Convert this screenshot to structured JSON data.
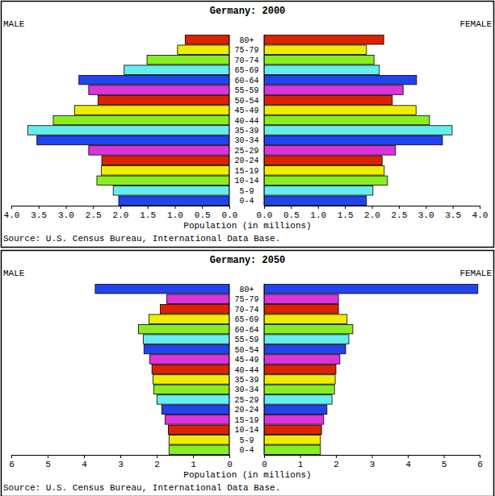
{
  "chart_data": [
    {
      "type": "bar",
      "orientation": "horizontal",
      "title": "Germany: 2000",
      "categories": [
        "0-4",
        "5-9",
        "10-14",
        "15-19",
        "20-24",
        "25-29",
        "30-34",
        "35-39",
        "40-44",
        "45-49",
        "50-54",
        "55-59",
        "60-64",
        "65-69",
        "70-74",
        "75-79",
        "80+"
      ],
      "series": [
        {
          "name": "MALE",
          "values": [
            2.03,
            2.13,
            2.43,
            2.35,
            2.34,
            2.58,
            3.53,
            3.7,
            3.23,
            2.84,
            2.41,
            2.58,
            2.76,
            1.93,
            1.51,
            0.95,
            0.81
          ]
        },
        {
          "name": "FEMALE",
          "values": [
            1.9,
            2.02,
            2.29,
            2.23,
            2.19,
            2.44,
            3.31,
            3.49,
            3.07,
            2.82,
            2.38,
            2.58,
            2.83,
            2.14,
            2.04,
            1.9,
            2.22
          ]
        }
      ],
      "colors": [
        "#2244ee",
        "#66eeee",
        "#88ee22",
        "#eeee00",
        "#dd2200",
        "#dd33dd",
        "#2244ee",
        "#66eeee",
        "#88ee22",
        "#eeee00",
        "#dd2200",
        "#dd33dd",
        "#2244ee",
        "#66eeee",
        "#88ee22",
        "#eeee00",
        "#dd2200"
      ],
      "xlabel": "Population (in millions)",
      "xlim": [
        0,
        4
      ],
      "xticks": [
        {
          "value": 0,
          "label": "0.0"
        },
        {
          "value": 0.5,
          "label": "0.5"
        },
        {
          "value": 1,
          "label": "1.0"
        },
        {
          "value": 1.5,
          "label": "1.5"
        },
        {
          "value": 2,
          "label": "2.0"
        },
        {
          "value": 2.5,
          "label": "2.5"
        },
        {
          "value": 3,
          "label": "3.0"
        },
        {
          "value": 3.5,
          "label": "3.5"
        },
        {
          "value": 4,
          "label": "4.0"
        }
      ],
      "annotations": [
        "Source: U.S. Census Bureau, International Data Base."
      ]
    },
    {
      "type": "bar",
      "orientation": "horizontal",
      "title": "Germany: 2050",
      "categories": [
        "0-4",
        "5-9",
        "10-14",
        "15-19",
        "20-24",
        "25-29",
        "30-34",
        "35-39",
        "40-44",
        "45-49",
        "50-54",
        "55-59",
        "60-64",
        "65-69",
        "70-74",
        "75-79",
        "80+"
      ],
      "series": [
        {
          "name": "MALE",
          "values": [
            1.66,
            1.66,
            1.68,
            1.77,
            1.86,
            1.99,
            2.08,
            2.1,
            2.13,
            2.19,
            2.35,
            2.37,
            2.5,
            2.21,
            1.9,
            1.72,
            3.69
          ]
        },
        {
          "name": "FEMALE",
          "values": [
            1.57,
            1.57,
            1.6,
            1.66,
            1.75,
            1.89,
            1.96,
            1.98,
            2.0,
            2.11,
            2.27,
            2.36,
            2.47,
            2.31,
            2.07,
            2.07,
            5.95
          ]
        }
      ],
      "colors": [
        "#88ee22",
        "#eeee00",
        "#dd2200",
        "#dd33dd",
        "#2244ee",
        "#66eeee",
        "#88ee22",
        "#eeee00",
        "#dd2200",
        "#dd33dd",
        "#2244ee",
        "#66eeee",
        "#88ee22",
        "#eeee00",
        "#dd2200",
        "#dd33dd",
        "#2244ee"
      ],
      "xlabel": "Population (in millions)",
      "xlim": [
        0,
        6
      ],
      "xticks": [
        0,
        1,
        2,
        3,
        4,
        5,
        6
      ],
      "annotations": [
        "Source: U.S. Census Bureau, International Data Base."
      ]
    }
  ]
}
